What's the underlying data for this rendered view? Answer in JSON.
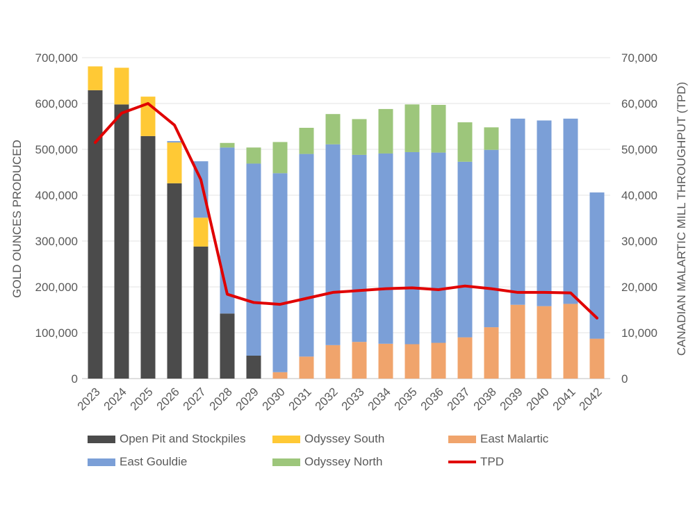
{
  "chart_data": {
    "type": "bar",
    "stacked": true,
    "categories": [
      "2023",
      "2024",
      "2025",
      "2026",
      "2027",
      "2028",
      "2029",
      "2030",
      "2031",
      "2032",
      "2033",
      "2034",
      "2035",
      "2036",
      "2037",
      "2038",
      "2039",
      "2040",
      "2041",
      "2042"
    ],
    "ylabel": "GOLD OUNCES PRODUCED",
    "y2label": "CANADIAN MALARTIC MILL  THROUGHPUT (TPD)",
    "ylim": [
      0,
      700000
    ],
    "y2lim": [
      0,
      70000
    ],
    "yticks": [
      "0",
      "100,000",
      "200,000",
      "300,000",
      "400,000",
      "500,000",
      "600,000",
      "700,000"
    ],
    "y2ticks": [
      "0",
      "10,000",
      "20,000",
      "30,000",
      "40,000",
      "50,000",
      "60,000",
      "70,000"
    ],
    "grid": true,
    "legend_position": "bottom",
    "series": [
      {
        "name": "Open Pit and Stockpiles",
        "color": "#4b4b4b",
        "values": [
          629000,
          598000,
          529000,
          426000,
          288000,
          142000,
          50000,
          0,
          0,
          0,
          0,
          0,
          0,
          0,
          0,
          0,
          0,
          0,
          0,
          0
        ]
      },
      {
        "name": "Odyssey South",
        "color": "#ffc935",
        "values": [
          52000,
          80000,
          86000,
          89000,
          63000,
          0,
          0,
          0,
          0,
          0,
          0,
          0,
          0,
          0,
          0,
          0,
          0,
          0,
          0,
          0
        ]
      },
      {
        "name": "East Malartic",
        "color": "#f0a46c",
        "values": [
          0,
          0,
          0,
          0,
          0,
          0,
          0,
          14000,
          48000,
          73000,
          80000,
          76000,
          75000,
          78000,
          90000,
          112000,
          161000,
          158000,
          163000,
          87000
        ]
      },
      {
        "name": "East Gouldie",
        "color": "#7b9fd7",
        "values": [
          0,
          0,
          0,
          3000,
          123000,
          362000,
          419000,
          434000,
          442000,
          438000,
          408000,
          415000,
          419000,
          415000,
          383000,
          387000,
          406000,
          405000,
          404000,
          319000
        ]
      },
      {
        "name": "Odyssey North",
        "color": "#9dc67b",
        "values": [
          0,
          0,
          0,
          0,
          0,
          10000,
          35000,
          68000,
          57000,
          66000,
          78000,
          97000,
          104000,
          104000,
          86000,
          49000,
          0,
          0,
          0,
          0
        ]
      },
      {
        "name": "TPD",
        "type": "line",
        "axis": "right",
        "color": "#e00000",
        "values": [
          51500,
          57900,
          60000,
          55300,
          43400,
          18400,
          16600,
          16200,
          17500,
          18800,
          19200,
          19600,
          19800,
          19400,
          20200,
          19600,
          18800,
          18800,
          18700,
          13200
        ]
      }
    ]
  }
}
